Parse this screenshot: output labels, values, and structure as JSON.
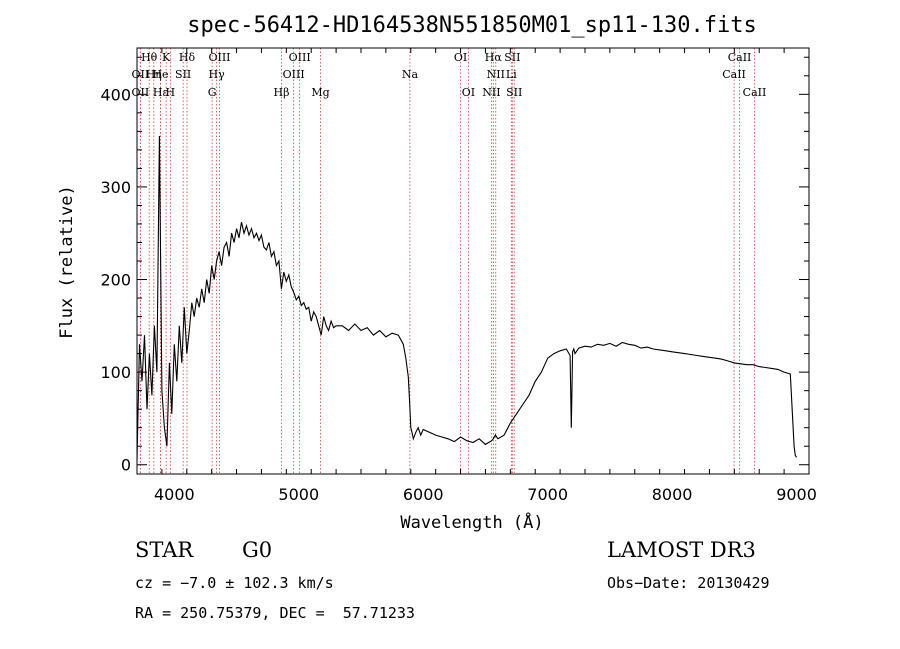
{
  "chart_data": {
    "type": "line",
    "title": "spec-56412-HD164538N551850M01_sp11-130.fits",
    "xlabel": "Wavelength (Å)",
    "ylabel": "Flux (relative)",
    "xlim": [
      3700,
      9100
    ],
    "ylim": [
      -10,
      450
    ],
    "xticks": [
      4000,
      5000,
      6000,
      7000,
      8000,
      9000
    ],
    "yticks": [
      0,
      100,
      200,
      300,
      400
    ],
    "series": [
      {
        "name": "spectrum",
        "x": [
          3700,
          3720,
          3740,
          3760,
          3780,
          3800,
          3820,
          3840,
          3860,
          3880,
          3900,
          3920,
          3940,
          3960,
          3980,
          4000,
          4020,
          4040,
          4060,
          4080,
          4100,
          4120,
          4140,
          4160,
          4180,
          4200,
          4220,
          4240,
          4260,
          4280,
          4300,
          4320,
          4340,
          4360,
          4380,
          4400,
          4420,
          4440,
          4460,
          4480,
          4500,
          4520,
          4540,
          4560,
          4580,
          4600,
          4620,
          4640,
          4660,
          4680,
          4700,
          4720,
          4740,
          4760,
          4780,
          4800,
          4820,
          4840,
          4860,
          4880,
          4900,
          4920,
          4940,
          4960,
          4980,
          5000,
          5020,
          5040,
          5060,
          5080,
          5100,
          5120,
          5140,
          5160,
          5180,
          5200,
          5220,
          5240,
          5260,
          5280,
          5300,
          5350,
          5400,
          5450,
          5500,
          5550,
          5600,
          5650,
          5700,
          5750,
          5800,
          5820,
          5840,
          5860,
          5880,
          5890,
          5900,
          5910,
          5920,
          5940,
          5960,
          5980,
          6000,
          6050,
          6100,
          6150,
          6200,
          6250,
          6300,
          6350,
          6400,
          6450,
          6500,
          6550,
          6563,
          6580,
          6600,
          6650,
          6700,
          6750,
          6800,
          6850,
          6900,
          6950,
          7000,
          7050,
          7100,
          7150,
          7180,
          7190,
          7200,
          7210,
          7220,
          7250,
          7300,
          7350,
          7400,
          7450,
          7500,
          7550,
          7600,
          7650,
          7700,
          7750,
          7800,
          7850,
          7900,
          7950,
          8000,
          8050,
          8100,
          8150,
          8200,
          8250,
          8300,
          8350,
          8400,
          8450,
          8500,
          8550,
          8600,
          8650,
          8700,
          8750,
          8800,
          8850,
          8900,
          8950,
          8980,
          8990,
          9000
        ],
        "y": [
          5,
          130,
          90,
          140,
          60,
          120,
          75,
          150,
          100,
          355,
          80,
          40,
          20,
          110,
          55,
          130,
          90,
          150,
          110,
          170,
          120,
          145,
          175,
          160,
          180,
          170,
          190,
          175,
          200,
          185,
          215,
          200,
          220,
          230,
          215,
          235,
          240,
          225,
          250,
          240,
          255,
          245,
          262,
          250,
          258,
          248,
          255,
          245,
          250,
          242,
          248,
          235,
          232,
          240,
          225,
          230,
          215,
          220,
          190,
          208,
          198,
          205,
          192,
          186,
          178,
          182,
          172,
          175,
          168,
          170,
          155,
          165,
          160,
          150,
          140,
          160,
          150,
          145,
          155,
          148,
          150,
          150,
          145,
          152,
          145,
          148,
          140,
          145,
          138,
          142,
          140,
          135,
          130,
          115,
          95,
          70,
          40,
          35,
          28,
          35,
          40,
          32,
          38,
          35,
          32,
          30,
          28,
          25,
          30,
          26,
          24,
          28,
          22,
          26,
          28,
          32,
          28,
          32,
          45,
          55,
          65,
          75,
          90,
          100,
          115,
          120,
          123,
          125,
          118,
          40,
          122,
          125,
          120,
          126,
          128,
          127,
          130,
          129,
          131,
          128,
          132,
          130,
          129,
          126,
          127,
          125,
          124,
          123,
          122,
          121,
          120,
          119,
          118,
          117,
          116,
          115,
          114,
          112,
          110,
          109,
          108,
          108,
          106,
          105,
          104,
          103,
          100,
          98,
          20,
          10,
          8
        ]
      }
    ],
    "lines": [
      {
        "name": "Hθ",
        "x": 3798,
        "row": 1
      },
      {
        "name": "OII",
        "x": 3727,
        "row": 2
      },
      {
        "name": "OII",
        "x": 3727,
        "row": 3
      },
      {
        "name": "Hη",
        "x": 3835,
        "row": 2
      },
      {
        "name": "Hε",
        "x": 3889,
        "row": 3
      },
      {
        "name": "K",
        "x": 3934,
        "row": 1
      },
      {
        "name": "He",
        "x": 3889,
        "row": 2
      },
      {
        "name": "H",
        "x": 3968,
        "row": 3
      },
      {
        "name": "Hδ",
        "x": 4102,
        "row": 1
      },
      {
        "name": "SII",
        "x": 4071,
        "row": 2
      },
      {
        "name": "OIII",
        "x": 4363,
        "row": 1
      },
      {
        "name": "Hγ",
        "x": 4340,
        "row": 2
      },
      {
        "name": "G",
        "x": 4304,
        "row": 3
      },
      {
        "name": "OIII",
        "x": 5007,
        "row": 1
      },
      {
        "name": "OIII",
        "x": 4959,
        "row": 2
      },
      {
        "name": "Hβ",
        "x": 4861,
        "row": 3
      },
      {
        "name": "Mg",
        "x": 5175,
        "row": 3
      },
      {
        "name": "Na",
        "x": 5893,
        "row": 2
      },
      {
        "name": "OI",
        "x": 6300,
        "row": 1
      },
      {
        "name": "OI",
        "x": 6363,
        "row": 3
      },
      {
        "name": "Hα",
        "x": 6563,
        "row": 1
      },
      {
        "name": "NII",
        "x": 6583,
        "row": 2
      },
      {
        "name": "NII",
        "x": 6548,
        "row": 3
      },
      {
        "name": "SII",
        "x": 6716,
        "row": 1
      },
      {
        "name": "Li",
        "x": 6708,
        "row": 2
      },
      {
        "name": "SII",
        "x": 6731,
        "row": 3
      },
      {
        "name": "CaII",
        "x": 8542,
        "row": 1
      },
      {
        "name": "CaII",
        "x": 8498,
        "row": 2
      },
      {
        "name": "CaII",
        "x": 8662,
        "row": 3
      }
    ],
    "line_color": "#d04040"
  },
  "info": {
    "class": "STAR",
    "subclass": "G0",
    "survey": "LAMOST DR3",
    "cz": "cz = −7.0 ± 102.3 km/s",
    "obs_date": "Obs−Date: 20130429",
    "radec": "RA = 250.75379, DEC =  57.71233"
  }
}
